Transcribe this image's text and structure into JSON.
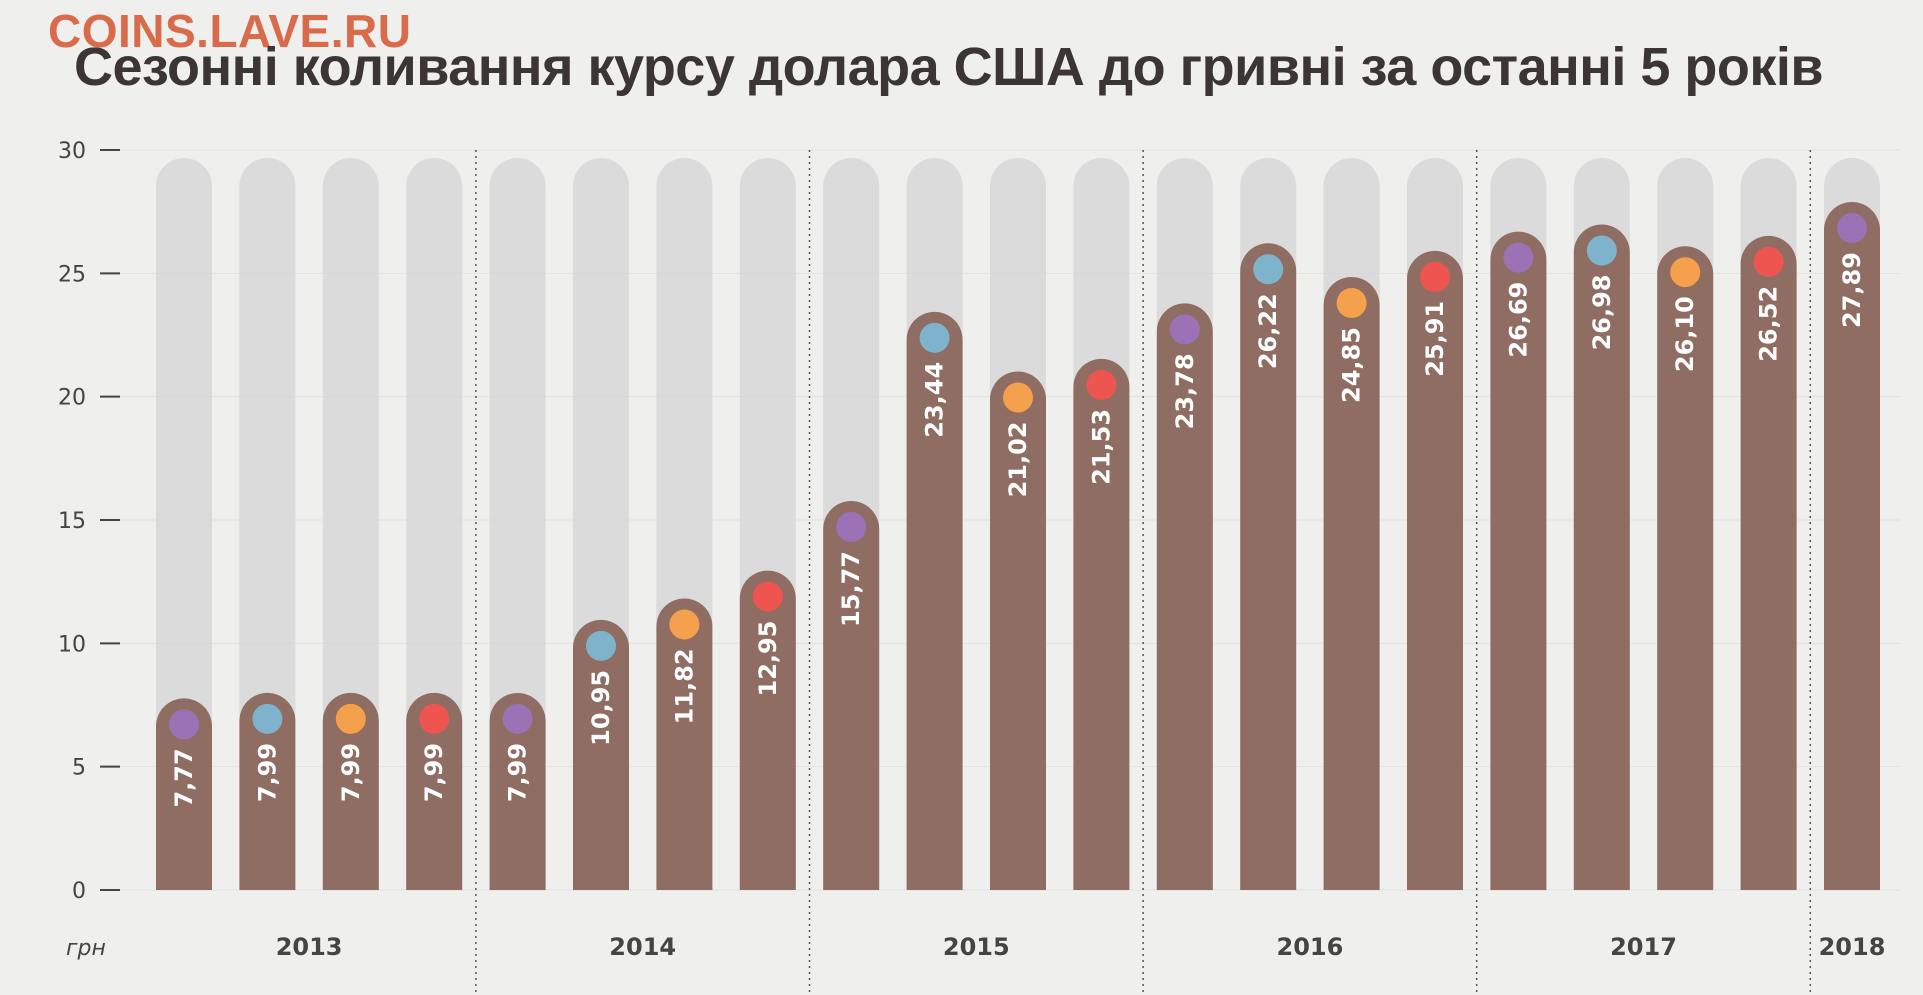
{
  "watermark": "COINS.LAVE.RU",
  "chart_data": {
    "type": "bar",
    "title": "Сезонні коливання курсу долара США до гривні за останні 5 років",
    "unit_label": "грн",
    "ylim": [
      0,
      30
    ],
    "y_ticks": [
      "0",
      "5",
      "10",
      "15",
      "20",
      "25",
      "30"
    ],
    "categories": [
      "2013",
      "2013",
      "2013",
      "2013",
      "2014",
      "2014",
      "2014",
      "2014",
      "2015",
      "2015",
      "2015",
      "2015",
      "2016",
      "2016",
      "2016",
      "2016",
      "2017",
      "2017",
      "2017",
      "2017",
      "2018"
    ],
    "groups": [
      "2013",
      "2014",
      "2015",
      "2016",
      "2017",
      "2018"
    ],
    "values": [
      7.77,
      7.99,
      7.99,
      7.99,
      7.99,
      10.95,
      11.82,
      12.95,
      15.77,
      23.44,
      21.02,
      21.53,
      23.78,
      26.22,
      24.85,
      25.91,
      26.69,
      26.98,
      26.1,
      26.52,
      27.89
    ],
    "value_labels": [
      "7,77",
      "7,99",
      "7,99",
      "7,99",
      "7,99",
      "10,95",
      "11,82",
      "12,95",
      "15,77",
      "23,44",
      "21,02",
      "21,53",
      "23,78",
      "26,22",
      "24,85",
      "25,91",
      "26,69",
      "26,98",
      "26,10",
      "26,52",
      "27,89"
    ],
    "quarters": [
      1,
      2,
      3,
      4,
      1,
      2,
      3,
      4,
      1,
      2,
      3,
      4,
      1,
      2,
      3,
      4,
      1,
      2,
      3,
      4,
      1
    ],
    "quarter_colors": [
      "#9a72b5",
      "#7fb3cc",
      "#f4a04c",
      "#ef5550"
    ],
    "colors": {
      "bar": "#8a6458",
      "bar_track": "#d4d4d4",
      "title": "#3b3533",
      "watermark": "#d96a4a",
      "axis_text": "#444444"
    }
  }
}
